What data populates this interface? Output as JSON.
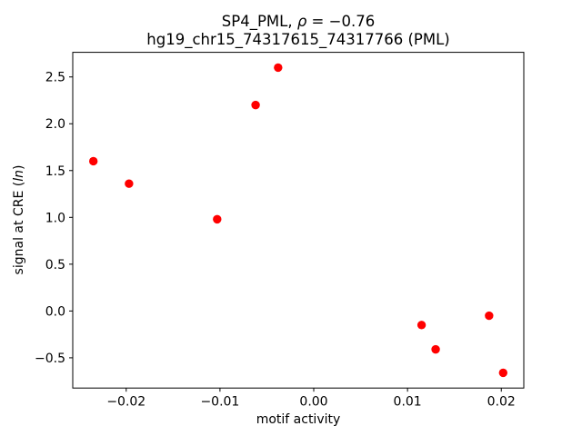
{
  "chart_data": {
    "type": "scatter",
    "title_line1": "SP4_PML, ρ = −0.76",
    "title_parts": {
      "prefix": "SP4_PML, ",
      "rho": "ρ",
      "suffix": " = −0.76"
    },
    "title_line2": "hg19_chr15_74317615_74317766 (PML)",
    "xlabel": "motif activity",
    "ylabel": "signal at CRE (ln)",
    "ylabel_parts": {
      "prefix": "signal at CRE (",
      "italic": "ln",
      "suffix": ")"
    },
    "x": [
      -0.0235,
      -0.0197,
      -0.0103,
      -0.0062,
      -0.0038,
      0.0115,
      0.013,
      0.0187,
      0.0202
    ],
    "y": [
      1.6,
      1.36,
      0.98,
      2.2,
      2.6,
      -0.15,
      -0.41,
      -0.05,
      -0.66
    ],
    "correlation_rho": -0.76,
    "marker_color": "#ff0000",
    "axes_color": "#000000",
    "xlim": [
      -0.0257,
      0.0224
    ],
    "ylim": [
      -0.823,
      2.763
    ],
    "xticks": [
      -0.02,
      -0.01,
      0.0,
      0.01,
      0.02
    ],
    "xtick_labels": [
      "−0.02",
      "−0.01",
      "0.00",
      "0.01",
      "0.02"
    ],
    "yticks": [
      -0.5,
      0.0,
      0.5,
      1.0,
      1.5,
      2.0,
      2.5
    ],
    "ytick_labels": [
      "−0.5",
      "0.0",
      "0.5",
      "1.0",
      "1.5",
      "2.0",
      "2.5"
    ],
    "legend": "none",
    "grid": "off"
  }
}
